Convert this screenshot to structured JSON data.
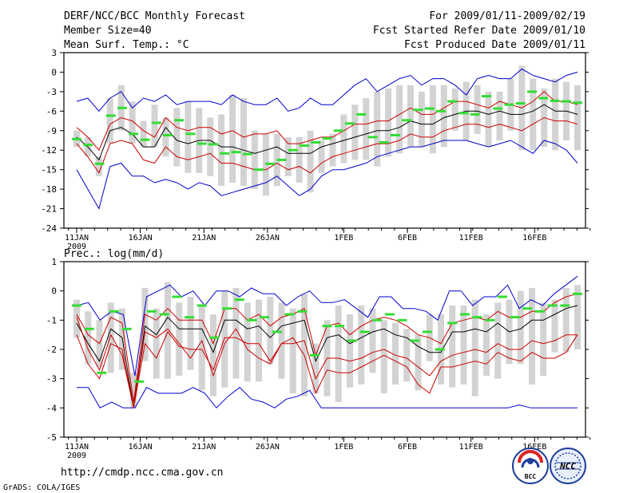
{
  "header": {
    "title": "DERF/NCC/BCC Monthly Forecast",
    "member_size": "Member Size=40",
    "for_period": "For 2009/01/11-2009/02/19",
    "fcst_started": "Fcst Started Refer Date 2009/01/10",
    "fcst_produced": "Fcst Produced Date 2009/01/11"
  },
  "footer": {
    "url": "http://cmdp.ncc.cma.gov.cn",
    "credit": "GrADS: COLA/IGES",
    "logo_left_text": "BCC",
    "logo_right_text": "NCC"
  },
  "colors": {
    "ensemble_max_min": "#0000cc",
    "quantile_lines": "#cc0000",
    "ensemble_mean": "#000000",
    "spread_bars": "#d3d3d3",
    "forecast_marks": "#33dd33"
  },
  "chart_data": [
    {
      "type": "line",
      "title": "Mean Surf. Temp.: °C",
      "ylim": [
        -24,
        3
      ],
      "yticks": [
        -24,
        -21,
        -18,
        -15,
        -12,
        -9,
        -6,
        -3,
        0,
        3
      ],
      "ytick_labels": [
        "-24",
        "-21",
        "-18",
        "-15",
        "-12",
        "-9",
        "-6",
        "-3",
        "0",
        "3"
      ],
      "x_days": 40,
      "x_ticks": [
        {
          "day": 1,
          "label": "11JAN",
          "sub": "2009"
        },
        {
          "day": 6,
          "label": "16JAN"
        },
        {
          "day": 11,
          "label": "21JAN"
        },
        {
          "day": 16,
          "label": "26JAN"
        },
        {
          "day": 22,
          "label": "1FEB"
        },
        {
          "day": 27,
          "label": "6FEB"
        },
        {
          "day": 32,
          "label": "11FEB"
        },
        {
          "day": 37,
          "label": "16FEB"
        }
      ],
      "series": [
        {
          "name": "max",
          "role": "max",
          "values": [
            -4.5,
            -4,
            -6,
            -4,
            -3,
            -5.5,
            -4,
            -4.5,
            -3.5,
            -5,
            -4.5,
            -4.5,
            -4.5,
            -5,
            -3.5,
            -4.5,
            -5,
            -5,
            -4,
            -6,
            -5.5,
            -4,
            -5,
            -5,
            -3.5,
            -2,
            -1,
            -3,
            -2,
            -1,
            -0.5,
            -2,
            -1,
            -1,
            -2,
            -3.5,
            -1,
            -0.5,
            -1,
            -1,
            0.5,
            -0.5,
            -1,
            -1.5,
            -0.5,
            0
          ]
        },
        {
          "name": "upper",
          "role": "quantile",
          "values": [
            -8.5,
            -10,
            -12,
            -8,
            -7,
            -7.5,
            -9,
            -10,
            -7,
            -8.5,
            -9,
            -8.5,
            -8.5,
            -9.5,
            -9,
            -10,
            -9.5,
            -9.5,
            -9,
            -11,
            -11,
            -10.5,
            -10,
            -10,
            -9,
            -8,
            -8,
            -7.5,
            -7.5,
            -6.5,
            -5.5,
            -6.5,
            -6.5,
            -5.5,
            -4.5,
            -4.5,
            -5,
            -5.5,
            -4.5,
            -5,
            -5.5,
            -4.5,
            -3,
            -4.5,
            -4.5,
            -5
          ]
        },
        {
          "name": "mean",
          "role": "mean",
          "values": [
            -10,
            -11.5,
            -13.5,
            -9,
            -8.5,
            -9.5,
            -11.5,
            -11.5,
            -8.5,
            -10.5,
            -11,
            -10.5,
            -10.5,
            -11.5,
            -11.5,
            -12,
            -12.5,
            -12,
            -11.5,
            -12.5,
            -12.5,
            -12.5,
            -11.5,
            -11,
            -10.5,
            -10,
            -9.5,
            -9,
            -9,
            -8.5,
            -7.5,
            -8,
            -8,
            -7,
            -6.5,
            -6,
            -6,
            -6.5,
            -6,
            -6.5,
            -6.5,
            -6,
            -5,
            -6,
            -6,
            -6.5
          ]
        },
        {
          "name": "lower",
          "role": "quantile",
          "values": [
            -11,
            -13,
            -15.5,
            -11,
            -10.5,
            -11,
            -13.5,
            -14,
            -11.5,
            -13,
            -13.5,
            -13,
            -12.5,
            -14,
            -14,
            -14.5,
            -15,
            -15,
            -14,
            -15,
            -14.5,
            -15.5,
            -14,
            -13,
            -12.5,
            -12,
            -11.5,
            -11,
            -11,
            -10.5,
            -9.5,
            -10,
            -10,
            -9,
            -8.5,
            -8,
            -8,
            -8.5,
            -8,
            -8.5,
            -9,
            -8,
            -7,
            -7.5,
            -7.5,
            -8
          ]
        },
        {
          "name": "min",
          "role": "min",
          "values": [
            -15,
            -18,
            -21,
            -14.5,
            -14,
            -16,
            -16,
            -17,
            -16.5,
            -17,
            -18,
            -17,
            -17.5,
            -19,
            -18.5,
            -18,
            -17.5,
            -17,
            -16,
            -17.5,
            -19,
            -18,
            -16,
            -15,
            -15,
            -14.5,
            -14,
            -13,
            -12.5,
            -12,
            -11.5,
            -11.5,
            -11,
            -10.5,
            -10.5,
            -10.5,
            -11,
            -11.5,
            -11,
            -10.5,
            -11.5,
            -12.5,
            -10.5,
            -11,
            -12,
            -14
          ]
        }
      ],
      "forecast_marks": [
        -10.3,
        -11.2,
        -14.1,
        -6.7,
        -5.5,
        -9.5,
        -10.4,
        -7.8,
        -9.7,
        -7.4,
        -9.5,
        -11,
        -11.1,
        -12.5,
        -12.3,
        -12.6,
        -15,
        -14.1,
        -13.5,
        -12,
        -11.3,
        -10.8,
        -10.2,
        -9,
        -7.9,
        -6.5,
        -10,
        -10.8,
        -9.7,
        -7.4,
        -5.8,
        -5.6,
        -6,
        -4.5,
        -6.3,
        -6.5,
        -3.7,
        -5.6,
        -5,
        -4.8,
        -3,
        -4,
        -4.4,
        -4.5,
        -4.7
      ],
      "spread_bars": [
        [
          -11.5,
          -9
        ],
        [
          -13,
          -10
        ],
        [
          -16,
          -13
        ],
        [
          -11,
          -4
        ],
        [
          -9,
          -2
        ],
        [
          -11,
          -4.5
        ],
        [
          -11.5,
          -7.5
        ],
        [
          -11.5,
          -5
        ],
        [
          -13,
          -7
        ],
        [
          -14.5,
          -5.5
        ],
        [
          -15.5,
          -4.5
        ],
        [
          -15.5,
          -5.5
        ],
        [
          -16,
          -7
        ],
        [
          -17.5,
          -6.5
        ],
        [
          -17,
          -3.5
        ],
        [
          -17.5,
          -4
        ],
        [
          -18,
          -9
        ],
        [
          -19,
          -9.5
        ],
        [
          -17.5,
          -9.5
        ],
        [
          -16,
          -10
        ],
        [
          -17,
          -10
        ],
        [
          -18.5,
          -9
        ],
        [
          -15.5,
          -10.5
        ],
        [
          -14.5,
          -9.5
        ],
        [
          -14,
          -6.5
        ],
        [
          -13.5,
          -5
        ],
        [
          -13.5,
          -4
        ],
        [
          -14.5,
          -3
        ],
        [
          -13,
          -2.5
        ],
        [
          -12.5,
          -2
        ],
        [
          -11.5,
          -2
        ],
        [
          -11.5,
          -3
        ],
        [
          -12.5,
          -2
        ],
        [
          -11.5,
          -2
        ],
        [
          -9,
          -2.5
        ],
        [
          -10.5,
          -1.5
        ],
        [
          -9.5,
          -2
        ],
        [
          -11.5,
          -3
        ],
        [
          -10.5,
          -3
        ],
        [
          -9,
          -1
        ],
        [
          -12,
          1
        ],
        [
          -12,
          -1
        ],
        [
          -11.5,
          -2.5
        ],
        [
          -12,
          -1
        ],
        [
          -10.5,
          -1.5
        ],
        [
          -12,
          -2
        ]
      ]
    },
    {
      "type": "line",
      "title": "Prec.: log(mm/d)",
      "ylim": [
        -5,
        1
      ],
      "yticks": [
        -5,
        -4,
        -3,
        -2,
        -1,
        0,
        1
      ],
      "ytick_labels": [
        "-5",
        "-4",
        "-3",
        "-2",
        "-1",
        "0",
        "1"
      ],
      "x_days": 40,
      "x_ticks": [
        {
          "day": 1,
          "label": "11JAN",
          "sub": "2009"
        },
        {
          "day": 6,
          "label": "16JAN"
        },
        {
          "day": 11,
          "label": "21JAN"
        },
        {
          "day": 16,
          "label": "26JAN"
        },
        {
          "day": 22,
          "label": "1FEB"
        },
        {
          "day": 27,
          "label": "6FEB"
        },
        {
          "day": 32,
          "label": "11FEB"
        },
        {
          "day": 37,
          "label": "16FEB"
        }
      ],
      "series": [
        {
          "name": "max",
          "role": "max",
          "values": [
            -0.5,
            -0.4,
            -1,
            -0.7,
            -0.8,
            -2.9,
            -0.2,
            0,
            0.2,
            -0.2,
            0,
            -0.5,
            0,
            0,
            -0.2,
            0.1,
            -0.1,
            -0.1,
            -0.5,
            -0.2,
            0,
            -0.4,
            -0.4,
            -0.3,
            -0.6,
            -0.9,
            -0.2,
            -0.2,
            -0.6,
            -0.6,
            -0.7,
            -1,
            0,
            0,
            -0.5,
            -0.2,
            -0.2,
            0.2,
            -0.6,
            -0.3,
            -0.5,
            -0.1,
            0.2,
            0.5
          ]
        },
        {
          "name": "upper",
          "role": "quantile",
          "values": [
            -0.8,
            -1.5,
            -1.8,
            -0.9,
            -1.1,
            -3.8,
            -0.8,
            -1,
            -0.6,
            -1,
            -1,
            -1,
            -1.8,
            -0.6,
            -0.6,
            -1,
            -0.8,
            -1.2,
            -0.9,
            -0.8,
            -0.6,
            -2.2,
            -1.2,
            -1.1,
            -1.5,
            -1.2,
            -1,
            -0.9,
            -1,
            -1.2,
            -1.5,
            -1.6,
            -1.8,
            -1.1,
            -1,
            -0.9,
            -1,
            -0.7,
            -0.9,
            -0.9,
            -0.7,
            -0.7,
            -0.4,
            -0.2,
            -0.1
          ]
        },
        {
          "name": "mean",
          "role": "mean",
          "values": [
            -1.1,
            -1.8,
            -2.4,
            -1.3,
            -1.6,
            -4,
            -1.2,
            -1.5,
            -0.9,
            -1.3,
            -1.3,
            -1.3,
            -2.1,
            -1,
            -1,
            -1.3,
            -1.2,
            -1.6,
            -1.2,
            -1.1,
            -1,
            -2.4,
            -1.6,
            -1.5,
            -1.8,
            -1.6,
            -1.4,
            -1.3,
            -1.5,
            -1.6,
            -1.9,
            -2.1,
            -2.1,
            -1.4,
            -1.4,
            -1.3,
            -1.4,
            -1.1,
            -1.4,
            -1.3,
            -1,
            -1,
            -0.8,
            -0.6,
            -0.5
          ]
        },
        {
          "name": "lower",
          "role": "quantile",
          "values": [
            -1.5,
            -2.5,
            -3,
            -1.8,
            -2,
            -4,
            -1.8,
            -2.3,
            -1.4,
            -1.9,
            -2,
            -2,
            -2.7,
            -1.6,
            -1.6,
            -1.8,
            -1.8,
            -2.4,
            -1.8,
            -1.8,
            -1.7,
            -3,
            -2.3,
            -2.3,
            -2.4,
            -2.3,
            -2.1,
            -2,
            -2.2,
            -2.3,
            -2.6,
            -2.9,
            -2.4,
            -2.2,
            -2.1,
            -2,
            -2.1,
            -1.8,
            -2,
            -2,
            -1.7,
            -1.8,
            -1.7,
            -1.5,
            -1.5
          ]
        },
        {
          "name": "min",
          "role": "min",
          "values": [
            -3.3,
            -3.3,
            -4,
            -3.8,
            -4,
            -4,
            -3.3,
            -3.5,
            -3.5,
            -3.5,
            -3.3,
            -3.5,
            -4,
            -3.6,
            -3.3,
            -3.7,
            -3.8,
            -4,
            -3.7,
            -3.6,
            -3.4,
            -4,
            -4,
            -4,
            -4,
            -4,
            -4,
            -4,
            -4,
            -4,
            -4,
            -4,
            -4,
            -4,
            -4,
            -4,
            -4,
            -4,
            -3.9,
            -4,
            -4,
            -4,
            -4,
            -4
          ]
        },
        {
          "name": "upper2",
          "role": "quantile",
          "values": [
            -0.9,
            -2,
            -2.7,
            -1.5,
            -2.2,
            -4,
            -1.4,
            -1.6,
            -1.3,
            -1.8,
            -2.3,
            -1.7,
            -2.9,
            -1.8,
            -1.3,
            -2,
            -2.3,
            -2.5,
            -1.8,
            -1.6,
            -2.2,
            -3.5,
            -2.7,
            -2.8,
            -2.8,
            -2.6,
            -2.4,
            -2.2,
            -2.4,
            -2.6,
            -3.2,
            -3.5,
            -2.6,
            -2.6,
            -2.5,
            -2.4,
            -2.5,
            -2.1,
            -2.3,
            -2.4,
            -2.1,
            -2.3,
            -2.3,
            -2.1,
            -1.5
          ]
        }
      ],
      "forecast_marks": [
        -0.5,
        -1.3,
        -2.8,
        -0.7,
        -1.3,
        -3.1,
        -0.7,
        -0.8,
        -0.2,
        -0.9,
        -0.5,
        -1.6,
        -0.6,
        -0.3,
        -1,
        -0.9,
        -1.4,
        -0.8,
        -0.7,
        -2.2,
        -1.2,
        -1.2,
        -1.7,
        -1.4,
        -1,
        -0.8,
        -1,
        -1.7,
        -1.4,
        -2,
        -1.1,
        -0.8,
        -0.9,
        -1,
        -0.2,
        -0.9,
        -0.6,
        -0.7,
        -0.5,
        -0.5,
        -0.1
      ],
      "spread_bars": [
        [
          -1.6,
          -0.3
        ],
        [
          -2.5,
          -0.7
        ],
        [
          -2.6,
          -1
        ],
        [
          -2.8,
          -0.4
        ],
        [
          -2.7,
          -0.6
        ],
        [
          -4,
          -2.8
        ],
        [
          -2.4,
          0.1
        ],
        [
          -3,
          -0.6
        ],
        [
          -3,
          0.3
        ],
        [
          -2.9,
          -0.4
        ],
        [
          -2.7,
          -0.2
        ],
        [
          -3.4,
          -0.5
        ],
        [
          -3.6,
          -0.8
        ],
        [
          -3.3,
          0
        ],
        [
          -3,
          0.1
        ],
        [
          -3.1,
          -0.4
        ],
        [
          -3.1,
          -0.3
        ],
        [
          -2.5,
          -0.2
        ],
        [
          -3,
          -0.4
        ],
        [
          -3.5,
          -0.6
        ],
        [
          -3.6,
          -0.1
        ],
        [
          -3.5,
          -1.8
        ],
        [
          -3.6,
          -1
        ],
        [
          -3.8,
          -0.5
        ],
        [
          -3.3,
          -0.8
        ],
        [
          -3.2,
          -0.5
        ],
        [
          -2.8,
          -0.6
        ],
        [
          -3.5,
          -1
        ],
        [
          -3.2,
          -1.1
        ],
        [
          -3.1,
          -1.3
        ],
        [
          -3.4,
          -1.5
        ],
        [
          -2.4,
          -0.8
        ],
        [
          -3.2,
          -0.8
        ],
        [
          -3.3,
          -0.5
        ],
        [
          -3.2,
          -0.5
        ],
        [
          -3.6,
          -0.3
        ],
        [
          -2.9,
          -0.8
        ],
        [
          -3,
          -0.4
        ],
        [
          -2.5,
          -0.3
        ],
        [
          -2.5,
          0
        ],
        [
          -3.2,
          0.1
        ],
        [
          -2.9,
          -0.4
        ],
        [
          -2.1,
          -0.3
        ],
        [
          -2.1,
          0.1
        ],
        [
          -2,
          0.2
        ]
      ]
    }
  ]
}
